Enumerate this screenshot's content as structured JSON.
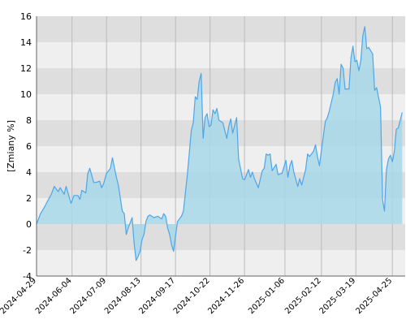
{
  "chart_data": {
    "type": "area",
    "title": "",
    "xlabel": "",
    "ylabel": "[Zmiany %]",
    "ylim": [
      -4,
      16
    ],
    "y_ticks": [
      -4,
      -2,
      0,
      2,
      4,
      6,
      8,
      10,
      12,
      14,
      16
    ],
    "y_tick_labels": [
      "-4",
      "-2",
      "0",
      "2",
      "4",
      "6",
      "8",
      "10",
      "12",
      "14",
      "16"
    ],
    "x_tick_labels": [
      "2024-04-29",
      "2024-06-04",
      "2024-07-09",
      "2024-08-13",
      "2024-09-17",
      "2024-10-22",
      "2024-11-26",
      "2025-01-06",
      "2025-02-12",
      "2025-03-19",
      "2025-04-25"
    ],
    "grid": "horizontal bands and vertical lines at date ticks",
    "legend": "none",
    "colors": {
      "line": "#4da6e8",
      "fill": "#a8d8ea",
      "band_dark": "#dedede",
      "band_light": "#efefef",
      "grid_line": "#bbbbbb"
    },
    "series": [
      {
        "points": [
          [
            "2024-04-29",
            0.0
          ],
          [
            "2024-05-03",
            0.8
          ],
          [
            "2024-05-07",
            1.3
          ],
          [
            "2024-05-09",
            1.6
          ],
          [
            "2024-05-14",
            2.3
          ],
          [
            "2024-05-17",
            2.9
          ],
          [
            "2024-05-21",
            2.5
          ],
          [
            "2024-05-23",
            2.8
          ],
          [
            "2024-05-27",
            2.3
          ],
          [
            "2024-05-29",
            2.9
          ],
          [
            "2024-06-03",
            1.6
          ],
          [
            "2024-06-06",
            2.2
          ],
          [
            "2024-06-10",
            2.2
          ],
          [
            "2024-06-12",
            1.9
          ],
          [
            "2024-06-14",
            2.6
          ],
          [
            "2024-06-18",
            2.4
          ],
          [
            "2024-06-20",
            3.9
          ],
          [
            "2024-06-22",
            4.3
          ],
          [
            "2024-06-26",
            3.2
          ],
          [
            "2024-06-28",
            3.2
          ],
          [
            "2024-07-02",
            3.3
          ],
          [
            "2024-07-04",
            2.8
          ],
          [
            "2024-07-06",
            3.1
          ],
          [
            "2024-07-09",
            3.9
          ],
          [
            "2024-07-13",
            4.3
          ],
          [
            "2024-07-15",
            5.1
          ],
          [
            "2024-07-19",
            3.6
          ],
          [
            "2024-07-21",
            3.0
          ],
          [
            "2024-07-25",
            1.0
          ],
          [
            "2024-07-27",
            0.8
          ],
          [
            "2024-07-29",
            -0.8
          ],
          [
            "2024-07-31",
            -0.3
          ],
          [
            "2024-08-04",
            0.5
          ],
          [
            "2024-08-06",
            -1.5
          ],
          [
            "2024-08-08",
            -2.8
          ],
          [
            "2024-08-10",
            -2.5
          ],
          [
            "2024-08-12",
            -2.1
          ],
          [
            "2024-08-14",
            -1.2
          ],
          [
            "2024-08-16",
            -0.8
          ],
          [
            "2024-08-18",
            0.2
          ],
          [
            "2024-08-20",
            0.6
          ],
          [
            "2024-08-22",
            0.7
          ],
          [
            "2024-08-26",
            0.5
          ],
          [
            "2024-08-30",
            0.6
          ],
          [
            "2024-09-03",
            0.4
          ],
          [
            "2024-09-05",
            0.8
          ],
          [
            "2024-09-07",
            0.6
          ],
          [
            "2024-09-09",
            -0.3
          ],
          [
            "2024-09-11",
            -0.8
          ],
          [
            "2024-09-13",
            -1.6
          ],
          [
            "2024-09-15",
            -2.1
          ],
          [
            "2024-09-17",
            -0.9
          ],
          [
            "2024-09-19",
            0.2
          ],
          [
            "2024-09-23",
            0.6
          ],
          [
            "2024-09-25",
            1.0
          ],
          [
            "2024-09-29",
            3.8
          ],
          [
            "2024-10-03",
            7.2
          ],
          [
            "2024-10-05",
            7.8
          ],
          [
            "2024-10-07",
            9.8
          ],
          [
            "2024-10-09",
            9.6
          ],
          [
            "2024-10-11",
            11.0
          ],
          [
            "2024-10-13",
            11.6
          ],
          [
            "2024-10-15",
            6.6
          ],
          [
            "2024-10-17",
            8.2
          ],
          [
            "2024-10-19",
            8.5
          ],
          [
            "2024-10-21",
            7.5
          ],
          [
            "2024-10-23",
            7.6
          ],
          [
            "2024-10-25",
            8.8
          ],
          [
            "2024-10-27",
            8.5
          ],
          [
            "2024-10-29",
            8.9
          ],
          [
            "2024-10-31",
            8.0
          ],
          [
            "2024-11-04",
            7.8
          ],
          [
            "2024-11-08",
            6.6
          ],
          [
            "2024-11-10",
            7.5
          ],
          [
            "2024-11-12",
            8.1
          ],
          [
            "2024-11-14",
            7.0
          ],
          [
            "2024-11-18",
            8.2
          ],
          [
            "2024-11-20",
            5.0
          ],
          [
            "2024-11-24",
            3.5
          ],
          [
            "2024-11-26",
            3.4
          ],
          [
            "2024-11-30",
            4.2
          ],
          [
            "2024-12-02",
            3.6
          ],
          [
            "2024-12-04",
            4.0
          ],
          [
            "2024-12-06",
            3.5
          ],
          [
            "2024-12-10",
            2.8
          ],
          [
            "2024-12-14",
            4.1
          ],
          [
            "2024-12-16",
            4.3
          ],
          [
            "2024-12-18",
            5.4
          ],
          [
            "2024-12-20",
            5.3
          ],
          [
            "2024-12-22",
            5.4
          ],
          [
            "2024-12-24",
            4.1
          ],
          [
            "2024-12-28",
            4.6
          ],
          [
            "2024-12-30",
            3.8
          ],
          [
            "2025-01-03",
            3.9
          ],
          [
            "2025-01-07",
            4.9
          ],
          [
            "2025-01-09",
            3.6
          ],
          [
            "2025-01-11",
            4.5
          ],
          [
            "2025-01-13",
            4.9
          ],
          [
            "2025-01-15",
            4.0
          ],
          [
            "2025-01-19",
            2.9
          ],
          [
            "2025-01-21",
            3.5
          ],
          [
            "2025-01-23",
            3.0
          ],
          [
            "2025-01-27",
            4.2
          ],
          [
            "2025-01-29",
            5.4
          ],
          [
            "2025-01-31",
            5.2
          ],
          [
            "2025-02-04",
            5.6
          ],
          [
            "2025-02-06",
            6.1
          ],
          [
            "2025-02-08",
            5.2
          ],
          [
            "2025-02-10",
            4.5
          ],
          [
            "2025-02-14",
            6.8
          ],
          [
            "2025-02-16",
            7.9
          ],
          [
            "2025-02-18",
            8.2
          ],
          [
            "2025-02-20",
            8.7
          ],
          [
            "2025-02-24",
            10.0
          ],
          [
            "2025-02-26",
            10.9
          ],
          [
            "2025-02-28",
            11.2
          ],
          [
            "2025-03-02",
            10.0
          ],
          [
            "2025-03-04",
            12.3
          ],
          [
            "2025-03-06",
            12.0
          ],
          [
            "2025-03-08",
            10.4
          ],
          [
            "2025-03-12",
            10.4
          ],
          [
            "2025-03-14",
            12.8
          ],
          [
            "2025-03-16",
            13.7
          ],
          [
            "2025-03-18",
            12.5
          ],
          [
            "2025-03-20",
            12.6
          ],
          [
            "2025-03-22",
            11.8
          ],
          [
            "2025-03-24",
            12.6
          ],
          [
            "2025-03-26",
            14.5
          ],
          [
            "2025-03-28",
            15.2
          ],
          [
            "2025-03-30",
            13.5
          ],
          [
            "2025-04-01",
            13.6
          ],
          [
            "2025-04-05",
            13.1
          ],
          [
            "2025-04-07",
            10.3
          ],
          [
            "2025-04-09",
            10.5
          ],
          [
            "2025-04-13",
            9.0
          ],
          [
            "2025-04-15",
            1.9
          ],
          [
            "2025-04-17",
            1.0
          ],
          [
            "2025-04-19",
            4.2
          ],
          [
            "2025-04-21",
            5.0
          ],
          [
            "2025-04-23",
            5.3
          ],
          [
            "2025-04-25",
            4.8
          ],
          [
            "2025-04-27",
            5.6
          ],
          [
            "2025-04-29",
            7.3
          ],
          [
            "2025-05-01",
            7.4
          ],
          [
            "2025-05-03",
            8.0
          ],
          [
            "2025-05-05",
            8.6
          ]
        ]
      }
    ]
  }
}
